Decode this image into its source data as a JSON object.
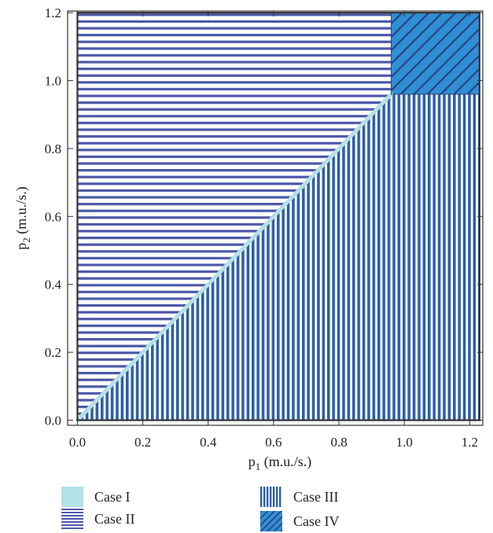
{
  "chart_data": {
    "type": "area",
    "title": "",
    "xlabel": {
      "main": "p",
      "sub": "1",
      "unit": " (m.u./s.)"
    },
    "ylabel": {
      "main": "p",
      "sub": "2",
      "unit": " (m.u./s.)"
    },
    "xlim": [
      -0.03,
      1.24
    ],
    "ylim": [
      -0.015,
      1.205
    ],
    "x_ticks": [
      "0.0",
      "0.2",
      "0.4",
      "0.6",
      "0.8",
      "1.0",
      "1.2"
    ],
    "y_ticks": [
      "0.0",
      "0.2",
      "0.4",
      "0.6",
      "0.8",
      "1.0",
      "1.2"
    ],
    "x_tick_values": [
      0,
      0.2,
      0.4,
      0.6,
      0.8,
      1.0,
      1.2
    ],
    "y_tick_values": [
      0,
      0.2,
      0.4,
      0.6,
      0.8,
      1.0,
      1.2
    ],
    "grid": false,
    "threshold": 0.96,
    "region_extent": {
      "xmax": 1.23,
      "ymax": 1.2
    },
    "legend_position": "bottom",
    "regions": [
      {
        "name": "Case I",
        "pattern": "solid",
        "color": "#b4e1e6",
        "description_polygon": [
          [
            0,
            0
          ],
          [
            0.96,
            0.96
          ]
        ]
      },
      {
        "name": "Case II",
        "pattern": "horizontal-lines",
        "color": "#4c58a8",
        "polygon": [
          [
            0,
            0
          ],
          [
            0.96,
            0.96
          ],
          [
            0.96,
            1.2
          ],
          [
            0,
            1.2
          ]
        ]
      },
      {
        "name": "Case III",
        "pattern": "vertical-lines",
        "color": "#2d5fa8",
        "polygon": [
          [
            0,
            0
          ],
          [
            1.23,
            0
          ],
          [
            1.23,
            0.96
          ],
          [
            0.96,
            0.96
          ]
        ]
      },
      {
        "name": "Case IV",
        "pattern": "diagonal-lines",
        "color": "#2f8fd4",
        "polygon": [
          [
            0.96,
            0.96
          ],
          [
            1.23,
            0.96
          ],
          [
            1.23,
            1.2
          ],
          [
            0.96,
            1.2
          ]
        ]
      }
    ]
  },
  "legend": [
    {
      "label": "Case I",
      "pattern": "solid"
    },
    {
      "label": "Case II",
      "pattern": "horizontal-lines"
    },
    {
      "label": "Case III",
      "pattern": "vertical-lines"
    },
    {
      "label": "Case IV",
      "pattern": "diagonal-lines"
    }
  ],
  "colors": {
    "frame": "#333333",
    "case_i": "#b4e1e6",
    "case_ii": "#4c58a8",
    "case_iii": "#2d5fa8",
    "case_iv_fill": "#2f8fd4",
    "case_iv_hatch": "#2a3f80"
  }
}
